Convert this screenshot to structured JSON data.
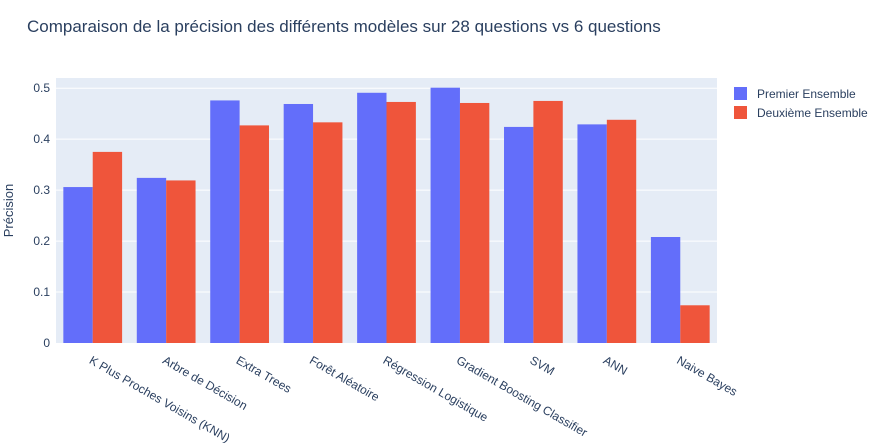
{
  "chart_data": {
    "type": "bar",
    "title": "Comparaison de la précision des différents modèles sur 28 questions vs 6 questions",
    "xlabel": "",
    "ylabel": "Précision",
    "ylim": [
      0,
      0.52
    ],
    "yticks": [
      "0",
      "0.1",
      "0.2",
      "0.3",
      "0.4",
      "0.5"
    ],
    "ytick_values": [
      0,
      0.1,
      0.2,
      0.3,
      0.4,
      0.5
    ],
    "grid": true,
    "legend_position": "top-right",
    "categories": [
      "K Plus Proches Voisins (KNN)",
      "Arbre de Décision",
      "Extra Trees",
      "Forêt Aléatoire",
      "Régression Logistique",
      "Gradient Boosting Classifier",
      "SVM",
      "ANN",
      "Naive Bayes"
    ],
    "series": [
      {
        "name": "Premier Ensemble",
        "color": "#636efa",
        "values": [
          0.306,
          0.324,
          0.476,
          0.469,
          0.491,
          0.501,
          0.424,
          0.429,
          0.208
        ]
      },
      {
        "name": "Deuxième Ensemble",
        "color": "#ef553b",
        "values": [
          0.375,
          0.319,
          0.427,
          0.433,
          0.473,
          0.471,
          0.475,
          0.438,
          0.074
        ]
      }
    ]
  }
}
